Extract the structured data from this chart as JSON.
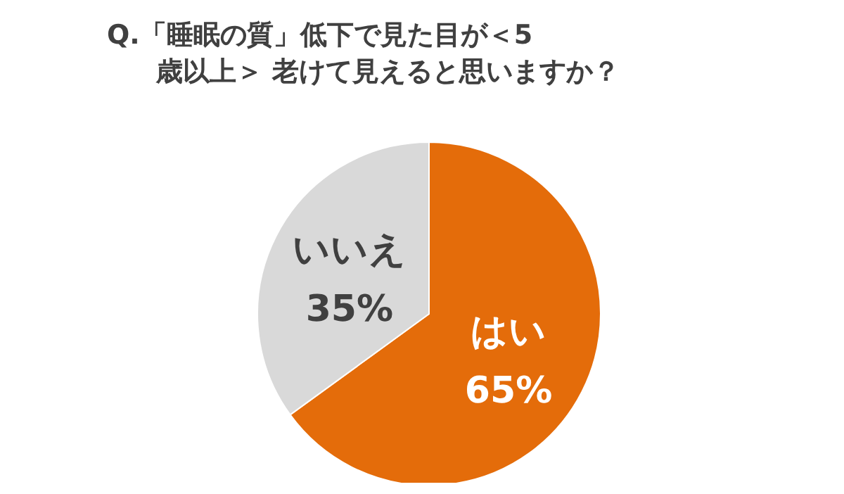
{
  "chart_data": {
    "type": "pie",
    "title": "Q.「睡眠の質」低下で見た目が＜5歳以上＞ 老けて見えると思いますか？",
    "categories": [
      "はい",
      "いいえ"
    ],
    "values": [
      65,
      35
    ],
    "value_labels": [
      "65%",
      "35%"
    ],
    "colors": [
      "#e46c0a",
      "#d9d9d9"
    ],
    "legend": false
  }
}
